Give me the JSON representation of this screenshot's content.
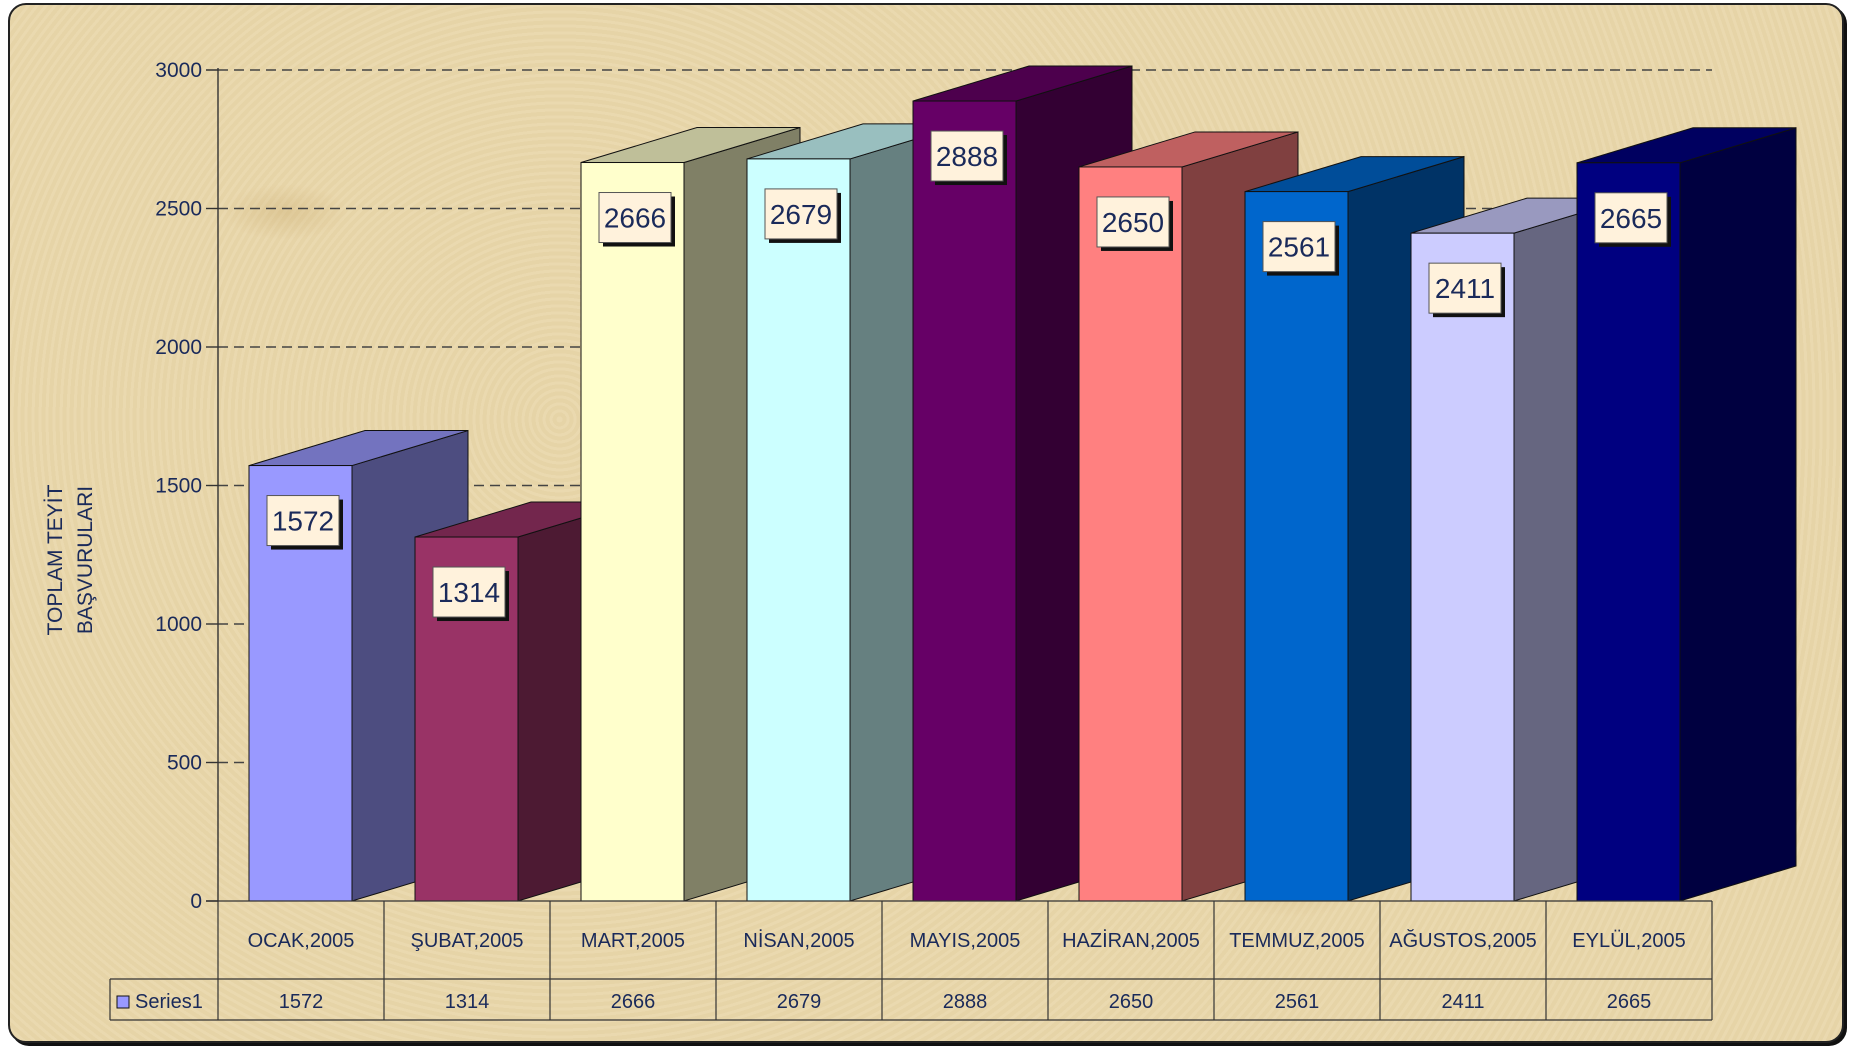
{
  "chart_data": {
    "type": "bar",
    "ylabel": [
      "TOPLAM TEYİT",
      "BAŞVURULARI"
    ],
    "ylim": [
      0,
      3000
    ],
    "yticks": [
      0,
      500,
      1000,
      1500,
      2000,
      2500,
      3000
    ],
    "grid": true,
    "categories": [
      "OCAK,2005",
      "ŞUBAT,2005",
      "MART,2005",
      "NİSAN,2005",
      "MAYIS,2005",
      "HAZİRAN,2005",
      "TEMMUZ,2005",
      "AĞUSTOS,2005",
      "EYLÜL,2005"
    ],
    "series": [
      {
        "name": "Series1",
        "values": [
          1572,
          1314,
          2666,
          2679,
          2888,
          2650,
          2561,
          2411,
          2665
        ],
        "colors": [
          "#9999ff",
          "#993366",
          "#ffffcc",
          "#ccffff",
          "#660066",
          "#ff8080",
          "#0066cc",
          "#ccccff",
          "#000080"
        ]
      }
    ],
    "legend": "data-table",
    "data_table": true
  }
}
